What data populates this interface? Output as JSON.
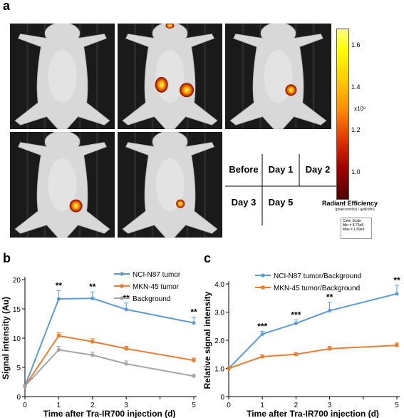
{
  "panel_a": {
    "label": "a",
    "grid": {
      "before": "Before",
      "day1": "Day 1",
      "day2": "Day 2",
      "day3": "Day 3",
      "day5": "Day 5"
    },
    "colorbar": {
      "ticks": [
        "1.6",
        "1.4",
        "1.2",
        "1.0"
      ],
      "exponent": "x10⁹",
      "title": "Radiant Efficiency",
      "units": "(p/sec/cm²/sr) / (µW/cm²)",
      "scale_title": "Color Scale",
      "scale_min": "Min = 8.76e8",
      "scale_max": "Max = 1.69e9"
    }
  },
  "chart_data": [
    {
      "type": "line",
      "panel": "b",
      "xlabel": "Time after Tra-IR700 injection (d)",
      "ylabel": "Signal intensity (Au)",
      "x": [
        0,
        1,
        2,
        3,
        5
      ],
      "xticks": [
        "0",
        "1",
        "2",
        "3",
        "",
        "5"
      ],
      "xlim": [
        0,
        5
      ],
      "ylim": [
        0,
        20
      ],
      "yticks": [
        "0",
        "5",
        "10",
        "15",
        "20"
      ],
      "legend_position": "top-right",
      "series": [
        {
          "name": "NCI-N87 tumor",
          "color": "#5b9bd5",
          "values": [
            1.8,
            16.7,
            16.8,
            14.9,
            12.6
          ],
          "errors": [
            0,
            1.4,
            1.1,
            1.1,
            1.0
          ]
        },
        {
          "name": "MKN-45 tumor",
          "color": "#ed7d31",
          "values": [
            1.8,
            10.4,
            9.4,
            8.2,
            6.2
          ],
          "errors": [
            0,
            0.5,
            0.5,
            0.4,
            0.4
          ]
        },
        {
          "name": "Background",
          "color": "#a5a5a5",
          "values": [
            1.8,
            8.0,
            7.1,
            5.6,
            3.5
          ],
          "errors": [
            0,
            0.6,
            0.5,
            0.5,
            0.3
          ]
        }
      ],
      "annotations": [
        {
          "x": 1,
          "text": "**"
        },
        {
          "x": 2,
          "text": "**"
        },
        {
          "x": 3,
          "text": "**"
        },
        {
          "x": 5,
          "text": "**"
        }
      ]
    },
    {
      "type": "line",
      "panel": "c",
      "xlabel": "Time after Tra-IR700 injection (d)",
      "ylabel": "Relative signal intensity",
      "x": [
        0,
        1,
        2,
        3,
        5
      ],
      "xticks": [
        "0",
        "1",
        "2",
        "3",
        "",
        "5"
      ],
      "xlim": [
        0,
        5
      ],
      "ylim": [
        0,
        4.0
      ],
      "yticks": [
        "0",
        "1.0",
        "2.0",
        "3.0",
        "4.0"
      ],
      "legend_position": "top-right",
      "series": [
        {
          "name": "NCI-N87 tumor/Background",
          "color": "#5b9bd5",
          "values": [
            1.0,
            2.22,
            2.6,
            3.05,
            3.65
          ],
          "errors": [
            0,
            0.1,
            0.12,
            0.3,
            0.3
          ]
        },
        {
          "name": "MKN-45 tumor/Background",
          "color": "#ed7d31",
          "values": [
            1.0,
            1.42,
            1.5,
            1.7,
            1.82
          ],
          "errors": [
            0,
            0.06,
            0.06,
            0.08,
            0.08
          ]
        }
      ],
      "annotations": [
        {
          "x": 1,
          "text": "***"
        },
        {
          "x": 2,
          "text": "***"
        },
        {
          "x": 3,
          "text": "**"
        },
        {
          "x": 5,
          "text": "**"
        }
      ]
    }
  ]
}
